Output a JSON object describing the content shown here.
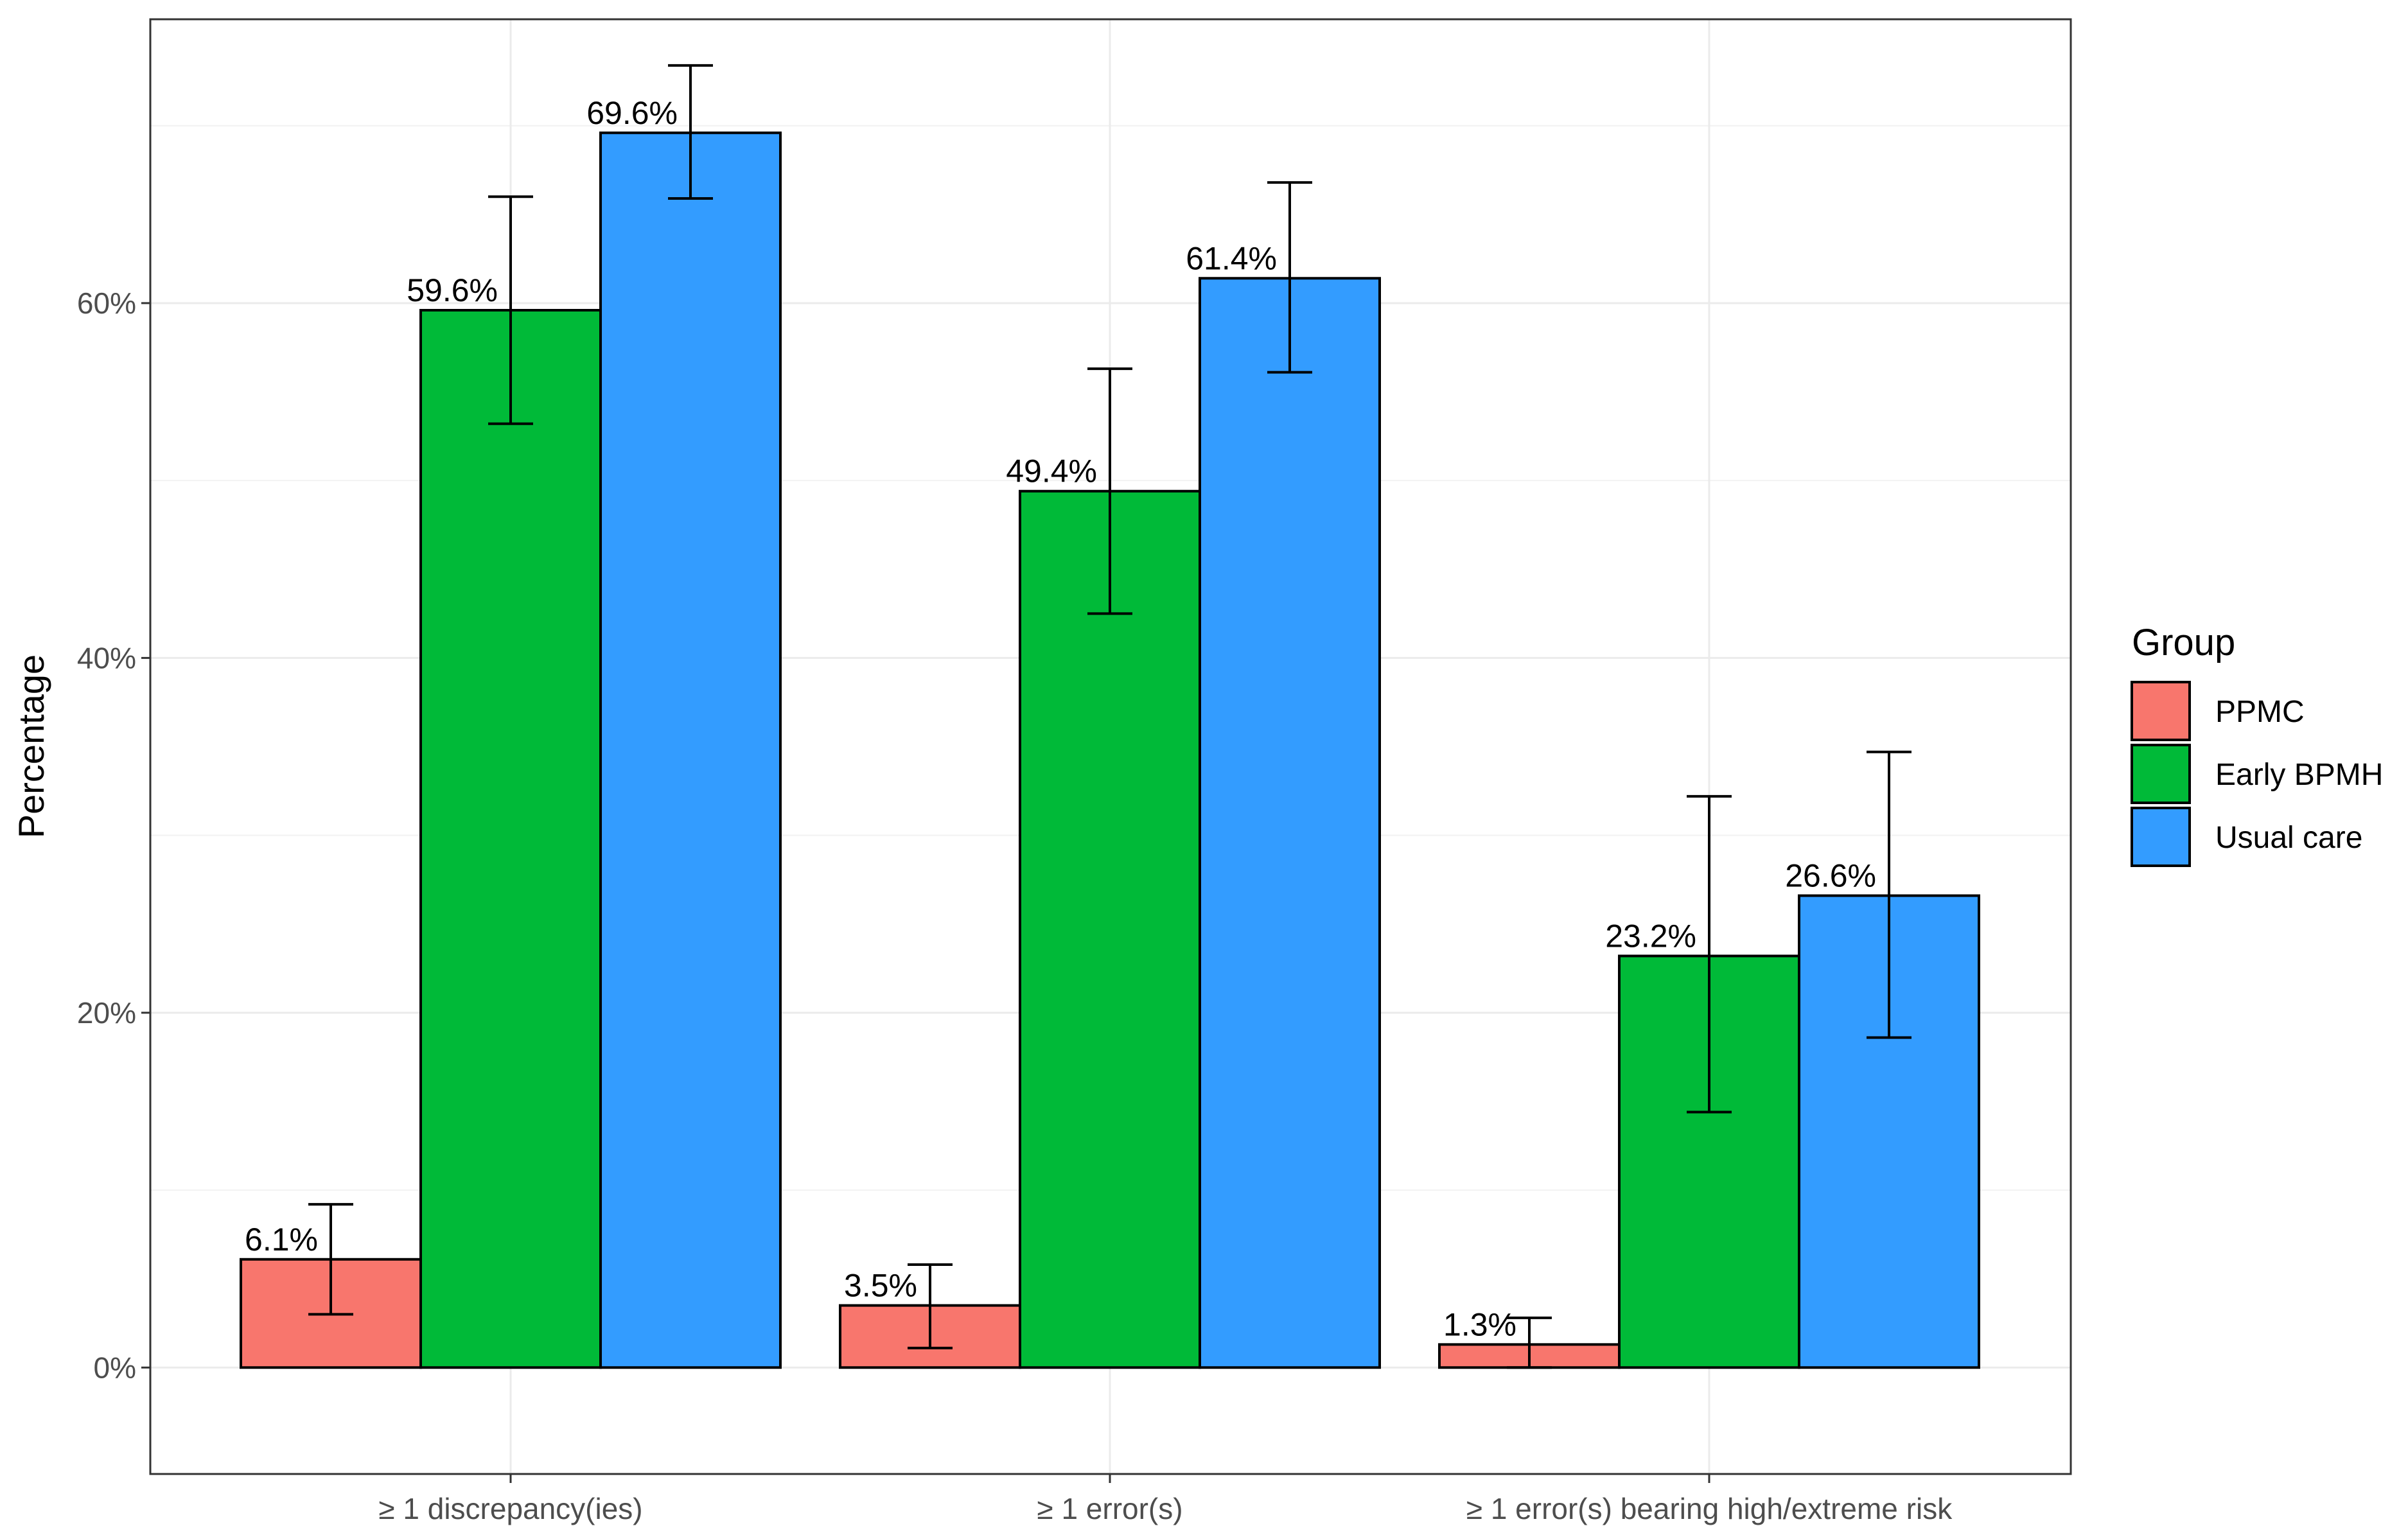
{
  "chart_data": {
    "type": "bar",
    "title": "",
    "xlabel": "",
    "ylabel": "Percentage",
    "ylim": [
      -0.06,
      0.76
    ],
    "yticks": [
      0,
      0.2,
      0.4,
      0.6
    ],
    "ytick_labels": [
      "0%",
      "20%",
      "40%",
      "60%"
    ],
    "grid": true,
    "categories": [
      "≥ 1 discrepancy(ies)",
      "≥ 1 error(s)",
      "≥ 1 error(s) bearing high/extreme risk"
    ],
    "series": [
      {
        "name": "PPMC",
        "color": "#F8766D",
        "values": [
          0.061,
          0.035,
          0.013
        ],
        "labels": [
          "6.1%",
          "3.5%",
          "1.3%"
        ],
        "err_low": [
          0.03,
          0.011,
          0.0
        ],
        "err_high": [
          0.092,
          0.058,
          0.028
        ]
      },
      {
        "name": "Early BPMH",
        "color": "#00BA38",
        "values": [
          0.596,
          0.494,
          0.232
        ],
        "labels": [
          "59.6%",
          "49.4%",
          "23.2%"
        ],
        "err_low": [
          0.532,
          0.425,
          0.144
        ],
        "err_high": [
          0.66,
          0.563,
          0.322
        ]
      },
      {
        "name": "Usual care",
        "color": "#339CFF",
        "values": [
          0.696,
          0.614,
          0.266
        ],
        "labels": [
          "69.6%",
          "61.4%",
          "26.6%"
        ],
        "err_low": [
          0.659,
          0.561,
          0.186
        ],
        "err_high": [
          0.734,
          0.668,
          0.347
        ]
      }
    ],
    "legend": {
      "title": "Group",
      "position": "right"
    }
  }
}
